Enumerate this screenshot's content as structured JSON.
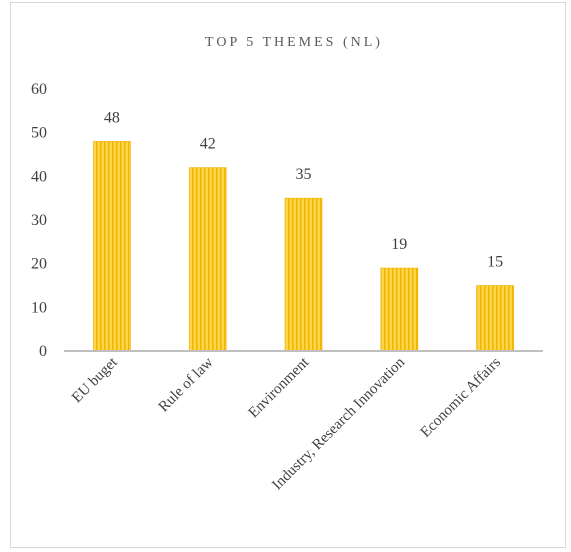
{
  "chart_data": {
    "type": "bar",
    "title": "TOP 5 THEMES (NL)",
    "categories": [
      "EU buget",
      "Rule of law",
      "Environment",
      "Industry, Research Innovation",
      "Economic Affairs"
    ],
    "values": [
      48,
      42,
      35,
      19,
      15
    ],
    "xlabel": "",
    "ylabel": "",
    "ylim": [
      0,
      60
    ],
    "yticks": [
      "0",
      "10",
      "20",
      "30",
      "40",
      "50",
      "60"
    ],
    "grid": false,
    "legend": "none",
    "colors": {
      "bar": "#FFCC33",
      "bar_stripe": "#F5B800",
      "axis": "#BFBFBF"
    }
  }
}
